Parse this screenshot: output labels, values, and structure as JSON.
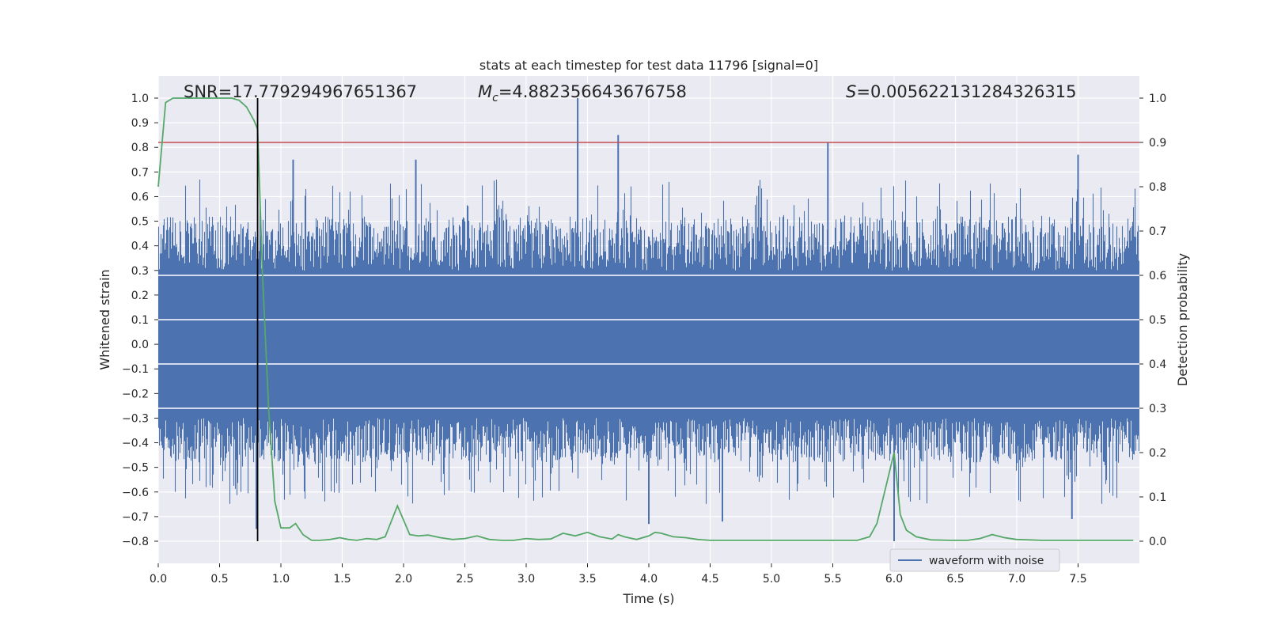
{
  "chart_data": {
    "type": "line",
    "title": "stats at each timestep for test data 11796 [signal=0]",
    "xlabel": "Time (s)",
    "ylabel_left": "Whitened strain",
    "ylabel_right": "Detection probability",
    "xlim": [
      0,
      8
    ],
    "ylim_left": [
      -0.89,
      1.09
    ],
    "ylim_right": [
      -0.05,
      1.05
    ],
    "grid": true,
    "x_ticks": [
      "0.0",
      "0.5",
      "1.0",
      "1.5",
      "2.0",
      "2.5",
      "3.0",
      "3.5",
      "4.0",
      "4.5",
      "5.0",
      "5.5",
      "6.0",
      "6.5",
      "7.0",
      "7.5"
    ],
    "y_left_ticks": [
      "1.0",
      "0.9",
      "0.8",
      "0.7",
      "0.6",
      "0.5",
      "0.4",
      "0.3",
      "0.2",
      "0.1",
      "0.0",
      "−0.1",
      "−0.2",
      "−0.3",
      "−0.4",
      "−0.5",
      "−0.6",
      "−0.7",
      "−0.8"
    ],
    "y_right_ticks": [
      "1.0",
      "0.9",
      "0.8",
      "0.7",
      "0.6",
      "0.5",
      "0.4",
      "0.3",
      "0.2",
      "0.1",
      "0.0"
    ],
    "annotations": {
      "snr": "SNR=17.779294967651367",
      "mc_label": "M",
      "mc_sub": "c",
      "mc_value": "=4.882356643676758",
      "s_label": "S",
      "s_value": "=0.005622131284326315"
    },
    "threshold": {
      "axis": "right",
      "value": 0.9,
      "color": "#c44e52"
    },
    "marker_line": {
      "x": 0.81,
      "color": "#000000"
    },
    "waveform": {
      "name": "waveform with noise",
      "color": "#4c72b0",
      "noise_band": [
        -0.27,
        0.29
      ],
      "spikes": [
        {
          "x": 3.42,
          "y": 1.0
        },
        {
          "x": 3.75,
          "y": 0.85
        },
        {
          "x": 5.46,
          "y": 0.82
        },
        {
          "x": 1.1,
          "y": 0.75
        },
        {
          "x": 2.1,
          "y": 0.75
        },
        {
          "x": 7.5,
          "y": 0.77
        },
        {
          "x": 4.0,
          "y": -0.73
        },
        {
          "x": 4.6,
          "y": -0.72
        },
        {
          "x": 7.45,
          "y": -0.71
        },
        {
          "x": 0.8,
          "y": -0.75
        },
        {
          "x": 6.0,
          "y": -0.8
        }
      ]
    },
    "probability": {
      "color": "#55a868",
      "x": [
        0.0,
        0.06,
        0.12,
        0.2,
        0.3,
        0.4,
        0.5,
        0.6,
        0.66,
        0.72,
        0.78,
        0.81,
        0.85,
        0.9,
        0.95,
        1.0,
        1.07,
        1.12,
        1.18,
        1.25,
        1.32,
        1.4,
        1.48,
        1.55,
        1.62,
        1.7,
        1.78,
        1.85,
        1.95,
        2.05,
        2.12,
        2.2,
        2.3,
        2.4,
        2.5,
        2.6,
        2.7,
        2.8,
        2.9,
        3.0,
        3.1,
        3.2,
        3.3,
        3.4,
        3.5,
        3.55,
        3.6,
        3.7,
        3.75,
        3.8,
        3.9,
        4.0,
        4.05,
        4.1,
        4.2,
        4.3,
        4.4,
        4.5,
        4.7,
        4.9,
        5.1,
        5.3,
        5.5,
        5.7,
        5.8,
        5.86,
        5.93,
        6.0,
        6.05,
        6.1,
        6.18,
        6.3,
        6.45,
        6.6,
        6.7,
        6.8,
        6.9,
        7.0,
        7.1,
        7.2,
        7.3,
        7.4,
        7.5,
        7.6,
        7.7,
        7.8,
        7.9,
        7.95
      ],
      "y": [
        0.8,
        0.99,
        1.0,
        1.0,
        1.0,
        1.0,
        1.0,
        1.0,
        0.995,
        0.98,
        0.95,
        0.93,
        0.6,
        0.3,
        0.09,
        0.03,
        0.03,
        0.04,
        0.015,
        0.002,
        0.002,
        0.004,
        0.008,
        0.004,
        0.002,
        0.006,
        0.004,
        0.01,
        0.08,
        0.015,
        0.012,
        0.014,
        0.008,
        0.004,
        0.006,
        0.012,
        0.004,
        0.002,
        0.002,
        0.006,
        0.004,
        0.005,
        0.018,
        0.012,
        0.02,
        0.015,
        0.01,
        0.005,
        0.015,
        0.01,
        0.004,
        0.012,
        0.02,
        0.018,
        0.01,
        0.008,
        0.004,
        0.002,
        0.002,
        0.002,
        0.002,
        0.002,
        0.002,
        0.002,
        0.01,
        0.04,
        0.12,
        0.2,
        0.06,
        0.025,
        0.01,
        0.003,
        0.002,
        0.002,
        0.006,
        0.015,
        0.008,
        0.004,
        0.003,
        0.002,
        0.002,
        0.002,
        0.002,
        0.002,
        0.002,
        0.002,
        0.002,
        0.002
      ]
    }
  }
}
